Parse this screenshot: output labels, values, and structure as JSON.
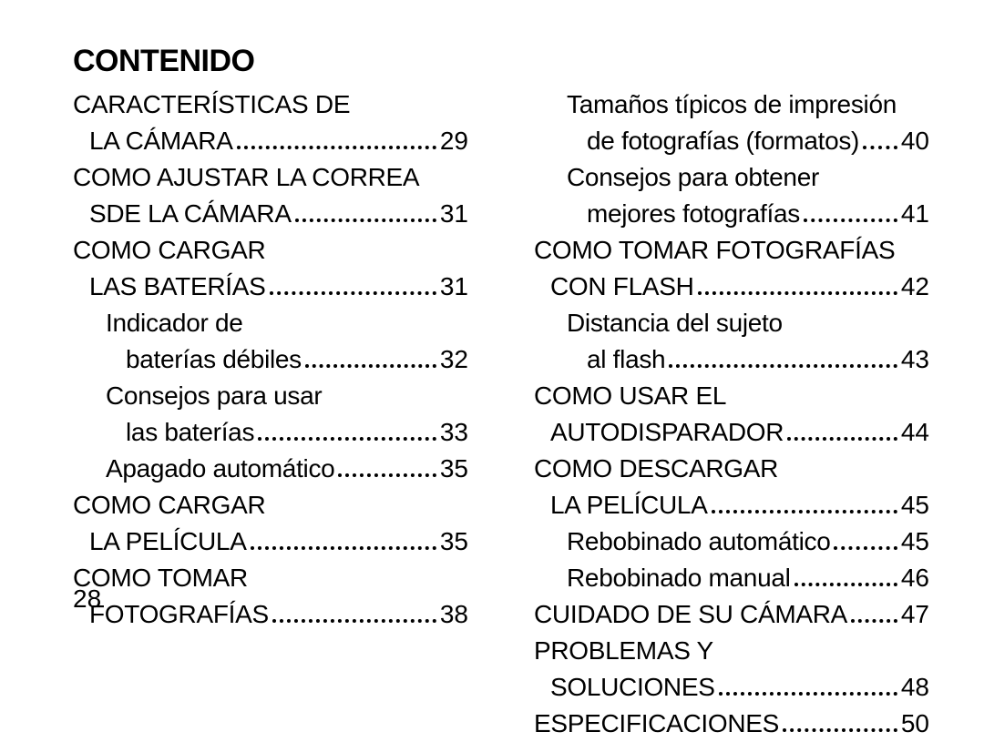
{
  "title": "CONTENIDO",
  "page_number": "28",
  "colors": {
    "text": "#000000",
    "background": "#ffffff"
  },
  "typography": {
    "title_fontsize_pt": 25,
    "body_fontsize_pt": 21,
    "font_family": "Arial",
    "leader_style": "dotted"
  },
  "left": [
    {
      "type": "line",
      "level": "lvl0",
      "text": "CARACTERÍSTICAS DE"
    },
    {
      "type": "entry",
      "level": "lvl0c",
      "text": "LA CÁMARA",
      "page": "29"
    },
    {
      "type": "line",
      "level": "lvl0",
      "text": "COMO AJUSTAR LA CORREA"
    },
    {
      "type": "entry",
      "level": "lvl0c",
      "text": "SDE LA CÁMARA",
      "page": "31"
    },
    {
      "type": "line",
      "level": "lvl0",
      "text": "COMO CARGAR"
    },
    {
      "type": "entry",
      "level": "lvl0c",
      "text": "LAS BATERÍAS",
      "page": "31"
    },
    {
      "type": "line",
      "level": "lvl1",
      "text": "Indicador de"
    },
    {
      "type": "entry",
      "level": "lvl1c",
      "text": "baterías débiles",
      "page": "32"
    },
    {
      "type": "line",
      "level": "lvl1",
      "text": "Consejos para usar"
    },
    {
      "type": "entry",
      "level": "lvl1c",
      "text": "las baterías",
      "page": "33"
    },
    {
      "type": "entry",
      "level": "lvl1",
      "text": "Apagado automático",
      "page": "35"
    },
    {
      "type": "line",
      "level": "lvl0",
      "text": "COMO CARGAR"
    },
    {
      "type": "entry",
      "level": "lvl0c",
      "text": "LA PELÍCULA",
      "page": "35"
    },
    {
      "type": "line",
      "level": "lvl0",
      "text": "COMO TOMAR"
    },
    {
      "type": "entry",
      "level": "lvl0c",
      "text": "FOTOGRAFÍAS",
      "page": "38"
    }
  ],
  "right": [
    {
      "type": "line",
      "level": "lvl1",
      "text": "Tamaños típicos de impresión"
    },
    {
      "type": "entry",
      "level": "lvl1c",
      "text": "de fotografías (formatos)",
      "page": "40"
    },
    {
      "type": "line",
      "level": "lvl1",
      "text": "Consejos para obtener"
    },
    {
      "type": "entry",
      "level": "lvl1c",
      "text": "mejores fotografías",
      "page": "41"
    },
    {
      "type": "line",
      "level": "lvl0",
      "text": "COMO TOMAR FOTOGRAFÍAS"
    },
    {
      "type": "entry",
      "level": "lvl0c",
      "text": "CON FLASH",
      "page": "42"
    },
    {
      "type": "line",
      "level": "lvl1",
      "text": "Distancia del sujeto"
    },
    {
      "type": "entry",
      "level": "lvl1c",
      "text": "al flash",
      "page": "43"
    },
    {
      "type": "line",
      "level": "lvl0",
      "text": "COMO USAR EL"
    },
    {
      "type": "entry",
      "level": "lvl0c",
      "text": "AUTODISPARADOR",
      "page": "44"
    },
    {
      "type": "line",
      "level": "lvl0",
      "text": "COMO DESCARGAR"
    },
    {
      "type": "entry",
      "level": "lvl0c",
      "text": "LA PELÍCULA",
      "page": "45"
    },
    {
      "type": "entry",
      "level": "lvl1",
      "text": "Rebobinado automático",
      "page": "45"
    },
    {
      "type": "entry",
      "level": "lvl1",
      "text": "Rebobinado manual",
      "page": "46"
    },
    {
      "type": "entry",
      "level": "lvl0",
      "text": "CUIDADO DE SU CÁMARA",
      "page": "47"
    },
    {
      "type": "line",
      "level": "lvl0",
      "text": "PROBLEMAS Y"
    },
    {
      "type": "entry",
      "level": "lvl0c",
      "text": "SOLUCIONES",
      "page": "48"
    },
    {
      "type": "entry",
      "level": "lvl0",
      "text": "ESPECIFICACIONES",
      "page": "50"
    }
  ]
}
